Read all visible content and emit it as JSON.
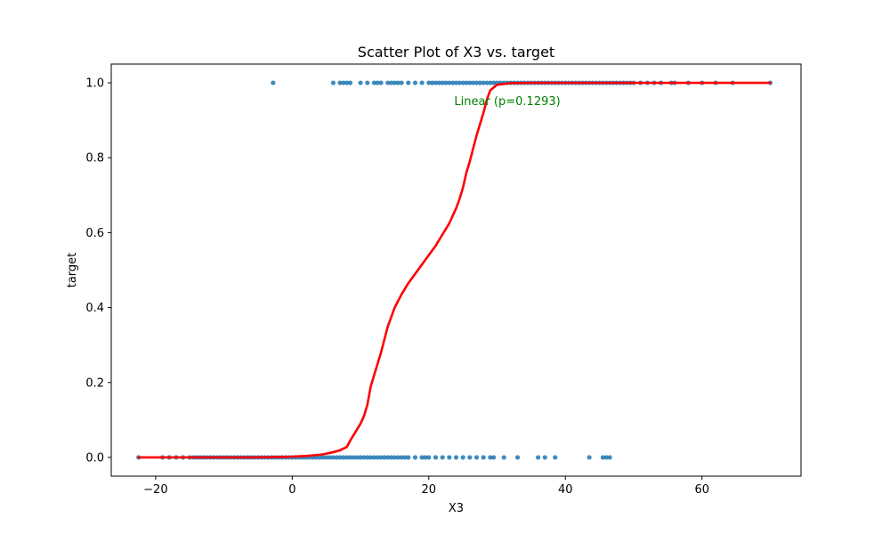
{
  "chart_data": {
    "type": "scatter",
    "title": "Scatter Plot of X3 vs. target",
    "xlabel": "X3",
    "ylabel": "target",
    "xlim": [
      -26.5,
      74.5
    ],
    "ylim": [
      -0.05,
      1.05
    ],
    "x_ticks": [
      -20,
      0,
      20,
      40,
      60
    ],
    "x_tick_labels": [
      "−20",
      "0",
      "20",
      "40",
      "60"
    ],
    "y_ticks": [
      0.0,
      0.2,
      0.4,
      0.6,
      0.8,
      1.0
    ],
    "y_tick_labels": [
      "0.0",
      "0.2",
      "0.4",
      "0.6",
      "0.8",
      "1.0"
    ],
    "grid": false,
    "annotation": {
      "text": "Linear (p=0.1293)",
      "x": 31.5,
      "y": 0.95,
      "color": "#008000"
    },
    "colors": {
      "points": "#1f77b4",
      "curve": "#ff0000",
      "annotation": "#008000"
    },
    "points_target_1": [
      -2.8,
      6,
      7,
      7.5,
      8,
      8.5,
      10,
      11,
      12,
      12.5,
      13,
      14,
      14.5,
      15,
      15.5,
      16,
      17,
      18,
      19,
      20,
      20.5,
      21,
      21.5,
      22,
      22.5,
      23,
      23.5,
      24,
      24.5,
      25,
      25.5,
      26,
      26.5,
      27,
      27.5,
      28,
      28.5,
      29,
      29.5,
      30,
      30.5,
      31,
      31.5,
      32,
      32.5,
      33,
      33.5,
      34,
      34.5,
      35,
      35.5,
      36,
      36.5,
      37,
      37.5,
      38,
      38.5,
      39,
      39.5,
      40,
      40.5,
      41,
      41.5,
      42,
      42.5,
      43,
      43.5,
      44,
      44.5,
      45,
      45.5,
      46,
      46.5,
      47,
      47.5,
      48,
      48.5,
      49,
      49.5,
      50,
      51,
      52,
      53,
      54,
      55.5,
      56,
      58,
      60,
      62,
      64.5,
      70
    ],
    "points_target_0": [
      -22.5,
      -19,
      -18,
      -17,
      -16,
      -15,
      -14.5,
      -14,
      -13.5,
      -13,
      -12.5,
      -12,
      -11.5,
      -11,
      -10.5,
      -10,
      -9.5,
      -9,
      -8.5,
      -8,
      -7.5,
      -7,
      -6.5,
      -6,
      -5.5,
      -5,
      -4.5,
      -4,
      -3.5,
      -3,
      -2.5,
      -2,
      -1.5,
      -1,
      -0.5,
      0,
      0.5,
      1,
      1.5,
      2,
      2.5,
      3,
      3.5,
      4,
      4.5,
      5,
      5.5,
      6,
      6.5,
      7,
      7.5,
      8,
      8.5,
      9,
      9.5,
      10,
      10.5,
      11,
      11.5,
      12,
      12.5,
      13,
      13.5,
      14,
      14.5,
      15,
      15.5,
      16,
      16.5,
      17,
      18,
      19,
      19.5,
      20,
      21,
      22,
      23,
      24,
      25,
      26,
      27,
      28,
      29,
      29.5,
      31,
      33,
      36,
      37,
      38.5,
      43.5,
      45.5,
      46,
      46.5
    ],
    "curve": {
      "x": [
        -22.5,
        -15,
        -10,
        -5,
        -2,
        0,
        2,
        4,
        5,
        6,
        7,
        8,
        8.5,
        9,
        10,
        10.5,
        11,
        11.5,
        12,
        13,
        14,
        15,
        16,
        17,
        18,
        19,
        20,
        21,
        22,
        23,
        24,
        24.5,
        25,
        25.5,
        26,
        27,
        27.5,
        28,
        28.5,
        29,
        30,
        32,
        35,
        40,
        45,
        50,
        60,
        70
      ],
      "y": [
        0.0,
        0.0,
        0.0,
        0.0,
        0.001,
        0.002,
        0.004,
        0.007,
        0.01,
        0.014,
        0.019,
        0.028,
        0.045,
        0.06,
        0.09,
        0.11,
        0.14,
        0.19,
        0.22,
        0.28,
        0.35,
        0.4,
        0.435,
        0.465,
        0.49,
        0.515,
        0.54,
        0.565,
        0.595,
        0.625,
        0.665,
        0.69,
        0.72,
        0.76,
        0.79,
        0.86,
        0.89,
        0.92,
        0.955,
        0.98,
        0.995,
        0.999,
        1.0,
        1.0,
        1.0,
        1.0,
        1.0,
        1.0
      ]
    }
  }
}
